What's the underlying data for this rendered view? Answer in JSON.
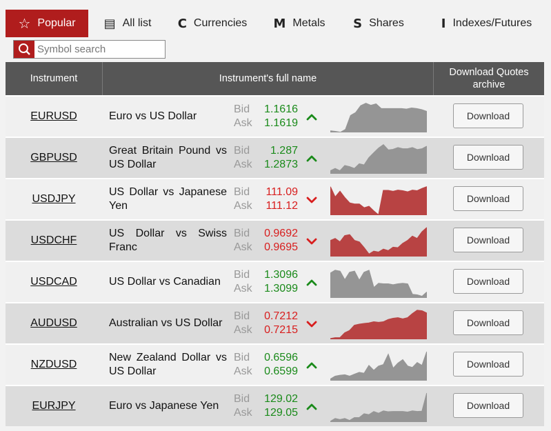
{
  "tabs": [
    {
      "label": "Popular",
      "icon": "star-icon",
      "glyph": "☆"
    },
    {
      "label": "All list",
      "icon": "list-icon",
      "glyph": "▤"
    },
    {
      "label": "Currencies",
      "icon": "currencies-letter-icon",
      "glyph": "C"
    },
    {
      "label": "Metals",
      "icon": "metals-letter-icon",
      "glyph": "M"
    },
    {
      "label": "Shares",
      "icon": "shares-letter-icon",
      "glyph": "S"
    },
    {
      "label": "Indexes/Futures",
      "icon": "indexes-letter-icon",
      "glyph": "I"
    }
  ],
  "search": {
    "placeholder": "Symbol search"
  },
  "table": {
    "headers": {
      "instrument": "Instrument",
      "full_name": "Instrument's full name",
      "download": "Download Quotes archive"
    },
    "bid_label": "Bid",
    "ask_label": "Ask",
    "download_label": "Download",
    "rows": [
      {
        "symbol": "EURUSD",
        "name": "Euro vs US Dollar",
        "bid": "1.1616",
        "ask": "1.1619",
        "direction": "up",
        "trend": [
          0.05,
          0.03,
          0.0,
          0.1,
          0.58,
          0.68,
          0.92,
          1.0,
          0.93,
          0.98,
          0.82,
          0.82,
          0.82,
          0.82,
          0.82,
          0.8,
          0.84,
          0.82,
          0.78,
          0.72
        ]
      },
      {
        "symbol": "GBPUSD",
        "name": "Great Britain Pound vs US Dollar",
        "bid": "1.287",
        "ask": "1.2873",
        "direction": "up",
        "trend": [
          0.1,
          0.18,
          0.1,
          0.28,
          0.24,
          0.18,
          0.34,
          0.3,
          0.55,
          0.72,
          0.88,
          1.0,
          0.82,
          0.84,
          0.9,
          0.86,
          0.86,
          0.9,
          0.83,
          0.86,
          0.95
        ]
      },
      {
        "symbol": "USDJPY",
        "name": "US Dollar vs Japanese Yen",
        "bid": "111.09",
        "ask": "111.12",
        "direction": "down",
        "trend": [
          0.98,
          0.62,
          0.82,
          0.6,
          0.42,
          0.38,
          0.38,
          0.25,
          0.3,
          0.14,
          0.0,
          0.85,
          0.85,
          0.82,
          0.86,
          0.84,
          0.8,
          0.86,
          0.84,
          0.92,
          0.98
        ]
      },
      {
        "symbol": "USDCHF",
        "name": "US Dollar vs Swiss Franc",
        "bid": "0.9692",
        "ask": "0.9695",
        "direction": "down",
        "trend": [
          0.55,
          0.62,
          0.5,
          0.72,
          0.75,
          0.55,
          0.5,
          0.3,
          0.08,
          0.18,
          0.15,
          0.25,
          0.2,
          0.32,
          0.3,
          0.45,
          0.55,
          0.7,
          0.62,
          0.85,
          1.0
        ]
      },
      {
        "symbol": "USDCAD",
        "name": "US Dollar vs Canadian",
        "bid": "1.3096",
        "ask": "1.3099",
        "direction": "up",
        "trend": [
          0.85,
          0.95,
          0.92,
          0.62,
          0.88,
          0.92,
          0.6,
          0.88,
          0.95,
          0.35,
          0.5,
          0.48,
          0.48,
          0.45,
          0.48,
          0.5,
          0.48,
          0.12,
          0.1,
          0.05,
          0.2
        ]
      },
      {
        "symbol": "AUDUSD",
        "name": "Australian vs US Dollar",
        "bid": "0.7212",
        "ask": "0.7215",
        "direction": "down",
        "trend": [
          0.02,
          0.05,
          0.05,
          0.22,
          0.3,
          0.48,
          0.52,
          0.54,
          0.56,
          0.6,
          0.58,
          0.6,
          0.68,
          0.72,
          0.74,
          0.7,
          0.74,
          0.88,
          1.0,
          0.98,
          0.9
        ]
      },
      {
        "symbol": "NZDUSD",
        "name": "New Zealand Dollar vs US Dollar",
        "bid": "0.6596",
        "ask": "0.6599",
        "direction": "up",
        "trend": [
          0.05,
          0.15,
          0.18,
          0.2,
          0.15,
          0.22,
          0.28,
          0.25,
          0.52,
          0.35,
          0.5,
          0.55,
          0.9,
          0.42,
          0.6,
          0.72,
          0.5,
          0.45,
          0.62,
          0.52,
          1.0
        ]
      },
      {
        "symbol": "EURJPY",
        "name": "Euro vs Japanese Yen",
        "bid": "129.02",
        "ask": "129.05",
        "direction": "up",
        "trend": [
          0.02,
          0.12,
          0.08,
          0.12,
          0.05,
          0.15,
          0.15,
          0.28,
          0.25,
          0.36,
          0.3,
          0.38,
          0.35,
          0.36,
          0.36,
          0.36,
          0.34,
          0.38,
          0.36,
          0.37,
          1.0
        ]
      }
    ]
  },
  "colors": {
    "accent": "#b01d1d",
    "header_bg": "#565656",
    "up": "#1a8a1a",
    "down": "#d81e1e",
    "spark_up": "#959595",
    "spark_down": "#b84343"
  }
}
